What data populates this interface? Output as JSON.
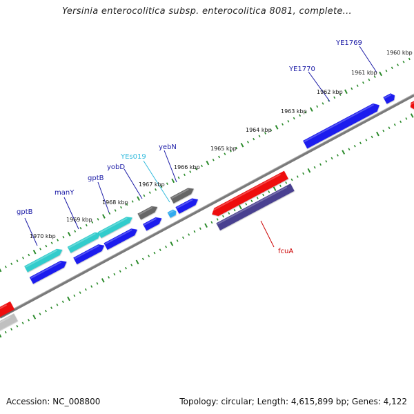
{
  "title": "Yersinia enterocolitica subsp. enterocolitica 8081, complete...",
  "footer": {
    "accession": "Accession: NC_008800",
    "summary": "Topology: circular; Length: 4,615,899 bp; Genes: 4,122"
  },
  "ticks": [
    "1970 kbp",
    "1969 kbp",
    "1968 kbp",
    "1967 kbp",
    "1966 kbp",
    "1965 kbp",
    "1964 kbp",
    "1963 kbp",
    "1962 kbp",
    "1961 kbp",
    "1960 kbp"
  ],
  "gene_labels": [
    {
      "name": "gptB",
      "color": "#1a1aa6"
    },
    {
      "name": "manY",
      "color": "#1a1aa6"
    },
    {
      "name": "gptB",
      "color": "#1a1aa6"
    },
    {
      "name": "yobD",
      "color": "#1a1aa6"
    },
    {
      "name": "YEs019",
      "color": "#33bbdd"
    },
    {
      "name": "yebN",
      "color": "#1a1aa6"
    },
    {
      "name": "YE1770",
      "color": "#1a1aa6"
    },
    {
      "name": "YE1769",
      "color": "#1a1aa6"
    },
    {
      "name": "fcuA",
      "color": "#cc0000"
    }
  ],
  "colors": {
    "cds_forward": "#1a1aee",
    "cds_reverse": "#ee1111",
    "rna": "#33cccc",
    "other": "#666666",
    "purple": "#4a4090",
    "backbone": "#888888",
    "tick": "#2a8a2a"
  }
}
